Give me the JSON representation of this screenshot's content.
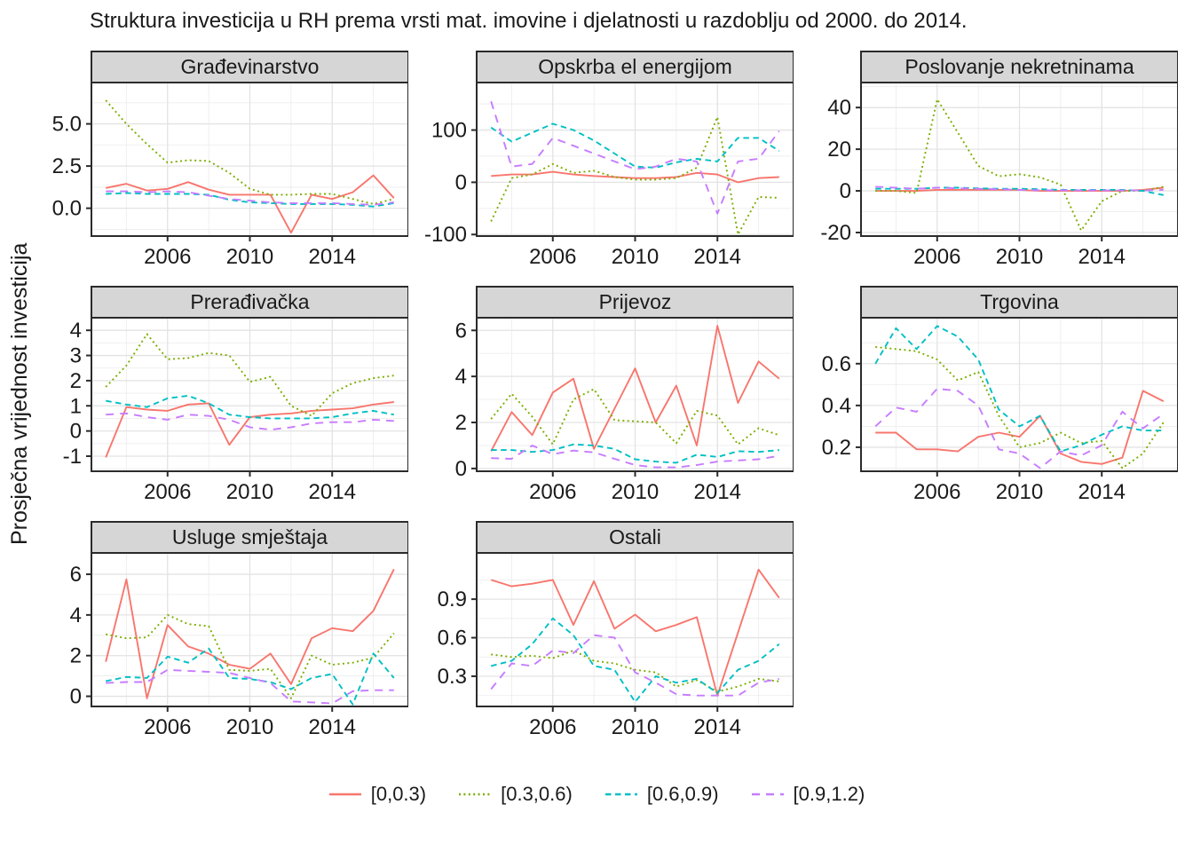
{
  "title": "Struktura investicija u RH prema vrsti mat. imovine i djelatnosti u razdoblju od 2000. do 2014.",
  "y_axis_label": "Prosječna vrijednost investicija",
  "colors": {
    "strip_fill": "#D6D6D6",
    "panel_border": "#2b2b2b",
    "grid_major": "#E3E3E3",
    "grid_minor": "#EDEDED",
    "text": "#1a1a1a"
  },
  "chart_data": {
    "type": "line",
    "x": [
      2003,
      2004,
      2005,
      2006,
      2007,
      2008,
      2009,
      2010,
      2011,
      2012,
      2013,
      2014,
      2015,
      2016,
      2017
    ],
    "xlim": [
      2002.3,
      2017.7
    ],
    "xticks": [
      2006,
      2010,
      2014
    ],
    "xtick_labels": [
      "2006",
      "2010",
      "2014"
    ],
    "grid": true,
    "legend_position": "bottom",
    "series_meta": [
      {
        "name": "[0,0.3)",
        "color": "#F8766D",
        "dash": "solid"
      },
      {
        "name": "[0.3,0.6)",
        "color": "#7CAE00",
        "dash": "dotted"
      },
      {
        "name": "[0.6,0.9)",
        "color": "#00BFC4",
        "dash": "dashed"
      },
      {
        "name": "[0.9,1.2)",
        "color": "#C77CFF",
        "dash": "longdash"
      }
    ],
    "facets": [
      {
        "title": "Građevinarstvo",
        "ylim": [
          -1.65,
          7.45
        ],
        "ytick_values": [
          0.0,
          2.5,
          5.0
        ],
        "ytick_labels": [
          "0.0",
          "2.5",
          "5.0"
        ],
        "series": [
          [
            1.2,
            1.45,
            1.05,
            1.15,
            1.55,
            1.1,
            0.8,
            0.8,
            0.8,
            -1.45,
            0.8,
            0.55,
            0.95,
            1.95,
            0.6
          ],
          [
            6.4,
            5.0,
            3.8,
            2.7,
            2.85,
            2.8,
            2.1,
            1.15,
            0.8,
            0.8,
            0.85,
            0.85,
            0.55,
            0.25,
            0.55
          ],
          [
            0.85,
            0.9,
            0.85,
            0.85,
            0.85,
            0.8,
            0.5,
            0.35,
            0.3,
            0.25,
            0.25,
            0.25,
            0.2,
            0.1,
            0.3
          ],
          [
            1.0,
            1.0,
            0.95,
            1.0,
            0.95,
            0.75,
            0.55,
            0.45,
            0.35,
            0.3,
            0.3,
            0.3,
            0.25,
            0.2,
            0.35
          ]
        ]
      },
      {
        "title": "Opskrba el energijom",
        "ylim": [
          -103,
          191
        ],
        "ytick_values": [
          -100,
          0,
          100
        ],
        "ytick_labels": [
          "-100",
          "0",
          "100"
        ],
        "series": [
          [
            12,
            15,
            15,
            20,
            15,
            12,
            10,
            8,
            8,
            10,
            18,
            15,
            0,
            8,
            10
          ],
          [
            -75,
            8,
            15,
            35,
            18,
            22,
            10,
            5,
            5,
            8,
            28,
            125,
            -100,
            -28,
            -30
          ],
          [
            105,
            78,
            95,
            112,
            100,
            80,
            55,
            30,
            28,
            38,
            45,
            40,
            85,
            85,
            60
          ],
          [
            155,
            30,
            35,
            85,
            70,
            55,
            40,
            25,
            30,
            45,
            40,
            -60,
            40,
            45,
            98
          ]
        ]
      },
      {
        "title": "Poslovanje nekretninama",
        "ylim": [
          -21.7,
          52
        ],
        "ytick_values": [
          -20,
          0,
          20,
          40
        ],
        "ytick_labels": [
          "-20",
          "0",
          "20",
          "40"
        ],
        "series": [
          [
            0,
            0,
            0,
            0.5,
            0.5,
            0.5,
            0.5,
            0.5,
            0,
            0,
            0,
            0,
            0,
            0.5,
            1.5
          ],
          [
            0,
            0,
            -1,
            44,
            28,
            12,
            7,
            8,
            6.5,
            3,
            -19,
            -5,
            0,
            0,
            2
          ],
          [
            1,
            1,
            1,
            1.5,
            1.5,
            1.2,
            1,
            1,
            0.8,
            0.5,
            0.5,
            0.5,
            0.5,
            0,
            -2
          ],
          [
            2,
            1.5,
            1,
            1.5,
            1.2,
            1,
            0.8,
            0.5,
            0.3,
            0.3,
            0.3,
            0.2,
            0.2,
            0.2,
            0.5
          ]
        ]
      },
      {
        "title": "Prerađivačka",
        "ylim": [
          -1.6,
          4.5
        ],
        "ytick_values": [
          -1,
          0,
          1,
          2,
          3,
          4
        ],
        "ytick_labels": [
          "-1",
          "0",
          "1",
          "2",
          "3",
          "4"
        ],
        "series": [
          [
            -1.05,
            0.95,
            0.85,
            0.8,
            1.05,
            1.1,
            -0.55,
            0.55,
            0.65,
            0.7,
            0.8,
            0.85,
            0.9,
            1.05,
            1.15
          ],
          [
            1.75,
            2.6,
            3.85,
            2.85,
            2.9,
            3.1,
            3.0,
            1.95,
            2.15,
            1.0,
            0.6,
            1.5,
            1.9,
            2.1,
            2.2
          ],
          [
            1.2,
            1.05,
            0.95,
            1.3,
            1.4,
            1.1,
            0.65,
            0.55,
            0.5,
            0.5,
            0.5,
            0.55,
            0.7,
            0.8,
            0.65
          ],
          [
            0.65,
            0.7,
            0.55,
            0.45,
            0.65,
            0.6,
            0.45,
            0.15,
            0.05,
            0.15,
            0.3,
            0.35,
            0.35,
            0.45,
            0.4
          ]
        ]
      },
      {
        "title": "Prijevoz",
        "ylim": [
          -0.12,
          6.55
        ],
        "ytick_values": [
          0,
          2,
          4,
          6
        ],
        "ytick_labels": [
          "0",
          "2",
          "4",
          "6"
        ],
        "series": [
          [
            0.75,
            2.45,
            1.45,
            3.3,
            3.9,
            0.85,
            2.6,
            4.35,
            2.0,
            3.6,
            1.0,
            6.2,
            2.85,
            4.65,
            3.9
          ],
          [
            2.15,
            3.25,
            2.25,
            1.05,
            3.0,
            3.45,
            2.1,
            2.05,
            2.0,
            1.1,
            2.5,
            2.3,
            1.05,
            1.75,
            1.45
          ],
          [
            0.8,
            0.8,
            0.72,
            0.8,
            1.05,
            1.0,
            0.85,
            0.4,
            0.3,
            0.25,
            0.6,
            0.5,
            0.75,
            0.72,
            0.8
          ],
          [
            0.45,
            0.42,
            1.0,
            0.62,
            0.78,
            0.7,
            0.42,
            0.15,
            0.05,
            0.05,
            0.15,
            0.3,
            0.35,
            0.4,
            0.55
          ]
        ]
      },
      {
        "title": "Trgovina",
        "ylim": [
          0.085,
          0.82
        ],
        "ytick_values": [
          0.2,
          0.4,
          0.6
        ],
        "ytick_labels": [
          "0.2",
          "0.4",
          "0.6"
        ],
        "series": [
          [
            0.27,
            0.27,
            0.19,
            0.19,
            0.18,
            0.25,
            0.27,
            0.25,
            0.35,
            0.17,
            0.13,
            0.12,
            0.15,
            0.47,
            0.42
          ],
          [
            0.68,
            0.67,
            0.66,
            0.62,
            0.52,
            0.56,
            0.35,
            0.2,
            0.22,
            0.27,
            0.22,
            0.23,
            0.1,
            0.17,
            0.32
          ],
          [
            0.6,
            0.77,
            0.67,
            0.78,
            0.73,
            0.62,
            0.38,
            0.3,
            0.35,
            0.18,
            0.21,
            0.26,
            0.3,
            0.28,
            0.28
          ],
          [
            0.3,
            0.39,
            0.37,
            0.48,
            0.47,
            0.4,
            0.19,
            0.17,
            0.1,
            0.18,
            0.16,
            0.21,
            0.37,
            0.29,
            0.36
          ]
        ]
      },
      {
        "title": "Usluge smještaja",
        "ylim": [
          -0.5,
          7.05
        ],
        "ytick_values": [
          0,
          2,
          4,
          6
        ],
        "ytick_labels": [
          "0",
          "2",
          "4",
          "6"
        ],
        "series": [
          [
            1.7,
            5.75,
            -0.1,
            3.5,
            2.45,
            2.1,
            1.55,
            1.35,
            2.1,
            0.6,
            2.85,
            3.35,
            3.2,
            4.2,
            6.25
          ],
          [
            3.05,
            2.85,
            2.9,
            4.0,
            3.55,
            3.45,
            1.3,
            1.25,
            1.35,
            -0.1,
            2.0,
            1.55,
            1.65,
            1.9,
            3.1
          ],
          [
            0.75,
            0.95,
            0.9,
            1.95,
            1.65,
            2.35,
            0.9,
            0.85,
            0.7,
            0.35,
            0.9,
            1.1,
            -0.4,
            2.1,
            0.9
          ],
          [
            0.65,
            0.7,
            0.7,
            1.3,
            1.25,
            1.2,
            1.15,
            0.9,
            0.65,
            -0.25,
            -0.3,
            -0.35,
            0.25,
            0.3,
            0.3
          ]
        ]
      },
      {
        "title": "Ostali",
        "ylim": [
          0.065,
          1.26
        ],
        "ytick_values": [
          0.3,
          0.6,
          0.9
        ],
        "ytick_labels": [
          "0.3",
          "0.6",
          "0.9"
        ],
        "series": [
          [
            1.05,
            1.0,
            1.02,
            1.05,
            0.7,
            1.04,
            0.67,
            0.78,
            0.65,
            0.7,
            0.76,
            0.15,
            0.64,
            1.13,
            0.91
          ],
          [
            0.47,
            0.45,
            0.46,
            0.44,
            0.5,
            0.42,
            0.4,
            0.35,
            0.33,
            0.22,
            0.27,
            0.18,
            0.22,
            0.28,
            0.26
          ],
          [
            0.38,
            0.42,
            0.55,
            0.75,
            0.62,
            0.38,
            0.35,
            0.1,
            0.3,
            0.25,
            0.28,
            0.17,
            0.35,
            0.42,
            0.55
          ],
          [
            0.2,
            0.4,
            0.38,
            0.5,
            0.48,
            0.62,
            0.6,
            0.33,
            0.25,
            0.16,
            0.15,
            0.15,
            0.15,
            0.25,
            0.28
          ]
        ]
      }
    ]
  },
  "legend": {
    "items": [
      "[0,0.3)",
      "[0.3,0.6)",
      "[0.6,0.9)",
      "[0.9,1.2)"
    ]
  }
}
